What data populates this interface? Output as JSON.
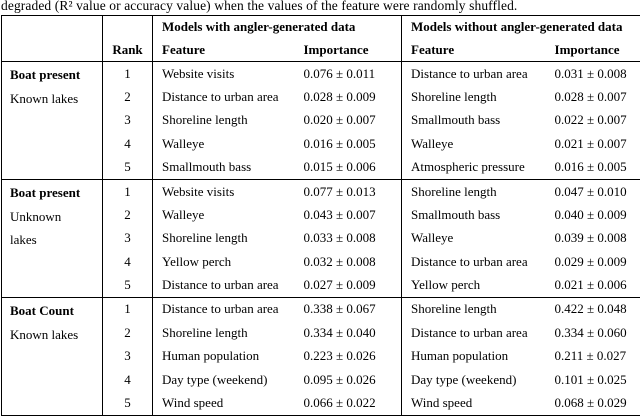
{
  "caption": "degraded (R² value or accuracy value) when the values of the feature were randomly shuffled.",
  "table": {
    "group_headers": {
      "with": "Models with angler-generated data",
      "without": "Models without angler-generated data"
    },
    "col_headers": {
      "rank": "Rank",
      "feature": "Feature",
      "importance": "Importance"
    },
    "blocks": [
      {
        "label_lines": [
          "Boat present",
          "Known lakes"
        ],
        "rows": [
          {
            "rank": "1",
            "with_feature": "Website visits",
            "with_importance": "0.076 ± 0.011",
            "without_feature": "Distance to urban area",
            "without_importance": "0.031 ± 0.008"
          },
          {
            "rank": "2",
            "with_feature": "Distance to urban area",
            "with_importance": "0.028 ± 0.009",
            "without_feature": "Shoreline length",
            "without_importance": "0.028 ± 0.007"
          },
          {
            "rank": "3",
            "with_feature": "Shoreline length",
            "with_importance": "0.020 ± 0.007",
            "without_feature": "Smallmouth bass",
            "without_importance": "0.022 ± 0.007"
          },
          {
            "rank": "4",
            "with_feature": "Walleye",
            "with_importance": "0.016 ± 0.005",
            "without_feature": "Walleye",
            "without_importance": "0.021 ± 0.007"
          },
          {
            "rank": "5",
            "with_feature": "Smallmouth bass",
            "with_importance": "0.015 ± 0.006",
            "without_feature": "Atmospheric pressure",
            "without_importance": "0.016 ± 0.005"
          }
        ]
      },
      {
        "label_lines": [
          "Boat present",
          "Unknown",
          "lakes"
        ],
        "rows": [
          {
            "rank": "1",
            "with_feature": "Website visits",
            "with_importance": "0.077 ± 0.013",
            "without_feature": "Shoreline length",
            "without_importance": "0.047 ± 0.010"
          },
          {
            "rank": "2",
            "with_feature": "Walleye",
            "with_importance": "0.043 ± 0.007",
            "without_feature": "Smallmouth bass",
            "without_importance": "0.040 ± 0.009"
          },
          {
            "rank": "3",
            "with_feature": "Shoreline length",
            "with_importance": "0.033 ± 0.008",
            "without_feature": "Walleye",
            "without_importance": "0.039 ± 0.008"
          },
          {
            "rank": "4",
            "with_feature": "Yellow perch",
            "with_importance": "0.032 ± 0.008",
            "without_feature": "Distance to urban area",
            "without_importance": "0.029 ± 0.009"
          },
          {
            "rank": "5",
            "with_feature": "Distance to urban area",
            "with_importance": "0.027 ± 0.009",
            "without_feature": "Yellow perch",
            "without_importance": "0.021 ± 0.006"
          }
        ]
      },
      {
        "label_lines": [
          "Boat Count",
          "Known lakes"
        ],
        "rows": [
          {
            "rank": "1",
            "with_feature": "Distance to urban area",
            "with_importance": "0.338 ± 0.067",
            "without_feature": "Shoreline length",
            "without_importance": "0.422 ± 0.048"
          },
          {
            "rank": "2",
            "with_feature": "Shoreline length",
            "with_importance": "0.334 ± 0.040",
            "without_feature": "Distance to urban area",
            "without_importance": "0.334 ± 0.060"
          },
          {
            "rank": "3",
            "with_feature": "Human population",
            "with_importance": "0.223 ± 0.026",
            "without_feature": "Human population",
            "without_importance": "0.211 ± 0.027"
          },
          {
            "rank": "4",
            "with_feature": "Day type (weekend)",
            "with_importance": "0.095 ± 0.026",
            "without_feature": "Day type (weekend)",
            "without_importance": "0.101 ± 0.025"
          },
          {
            "rank": "5",
            "with_feature": "Wind speed",
            "with_importance": "0.066 ± 0.022",
            "without_feature": "Wind speed",
            "without_importance": "0.068 ± 0.029"
          }
        ]
      }
    ]
  }
}
